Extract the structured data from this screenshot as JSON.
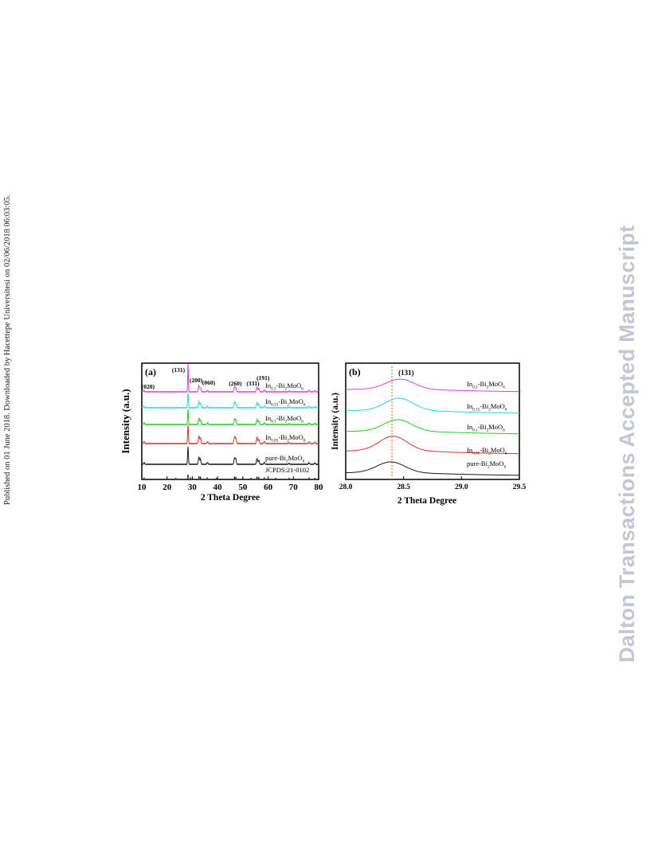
{
  "side_note": "Published on 01 June 2018. Downloaded by Hacettepe Universitesi on 02/06/2018 06:03:05.",
  "watermark": "Dalton Transactions Accepted Manuscript",
  "chart_data": [
    {
      "type": "line",
      "panel_label": "(a)",
      "xlabel": "2 Theta Degree",
      "ylabel": "Intensity (a.u.)",
      "xlim": [
        10,
        80
      ],
      "xticks": [
        "10",
        "20",
        "30",
        "40",
        "50",
        "60",
        "70",
        "80"
      ],
      "grid": false,
      "peak_labels": [
        {
          "text": "(020)",
          "x": 12.5
        },
        {
          "text": "(131)",
          "x": 24.5
        },
        {
          "text": "(200)",
          "x": 31.5
        },
        {
          "text": "(060)",
          "x": 36.5
        },
        {
          "text": "(260)",
          "x": 47.0
        },
        {
          "text": "(331)",
          "x": 54.0
        },
        {
          "text": "(191)",
          "x": 58.0
        }
      ],
      "peaks": [
        {
          "x": 10.9,
          "rel": 0.1
        },
        {
          "x": 28.3,
          "rel": 1.0
        },
        {
          "x": 32.6,
          "rel": 0.42
        },
        {
          "x": 33.2,
          "rel": 0.3
        },
        {
          "x": 36.0,
          "rel": 0.1
        },
        {
          "x": 46.7,
          "rel": 0.36
        },
        {
          "x": 47.2,
          "rel": 0.3
        },
        {
          "x": 55.6,
          "rel": 0.34
        },
        {
          "x": 56.3,
          "rel": 0.24
        },
        {
          "x": 58.5,
          "rel": 0.12
        },
        {
          "x": 68.3,
          "rel": 0.05
        },
        {
          "x": 76.2,
          "rel": 0.1
        },
        {
          "x": 78.5,
          "rel": 0.08
        }
      ],
      "series": [
        {
          "name": "pure-Bi",
          "sub1": "2",
          "mid": "MoO",
          "sub2": "6",
          "color": "#1a1a1a",
          "scale": 1.0
        },
        {
          "name": "In",
          "sub0": "0.05",
          "mid0": "-Bi",
          "sub1": "2",
          "mid": "MoO",
          "sub2": "6",
          "color": "#e8302a",
          "scale": 1.05
        },
        {
          "name": "In",
          "sub0": "0.1",
          "mid0": "-Bi",
          "sub1": "2",
          "mid": "MoO",
          "sub2": "6",
          "color": "#1ed11e",
          "scale": 0.85
        },
        {
          "name": "In",
          "sub0": "0.15",
          "mid0": "-Bi",
          "sub1": "2",
          "mid": "MoO",
          "sub2": "6",
          "color": "#22dddd",
          "scale": 0.85
        },
        {
          "name": "In",
          "sub0": "0.2",
          "mid0": "-Bi",
          "sub1": "2",
          "mid": "MoO",
          "sub2": "6",
          "color": "#e23ce2",
          "scale": 0.8
        }
      ],
      "reference": {
        "name": "JCPDS:21-0102",
        "lines": [
          {
            "x": 10.9,
            "h": 0.3
          },
          {
            "x": 23.5,
            "h": 0.2
          },
          {
            "x": 28.3,
            "h": 1.0
          },
          {
            "x": 29.3,
            "h": 0.3
          },
          {
            "x": 32.6,
            "h": 0.6
          },
          {
            "x": 33.2,
            "h": 0.5
          },
          {
            "x": 35.9,
            "h": 0.3
          },
          {
            "x": 39.5,
            "h": 0.2
          },
          {
            "x": 46.7,
            "h": 0.5
          },
          {
            "x": 47.2,
            "h": 0.4
          },
          {
            "x": 50.0,
            "h": 0.2
          },
          {
            "x": 53.2,
            "h": 0.2
          },
          {
            "x": 55.6,
            "h": 0.5
          },
          {
            "x": 56.3,
            "h": 0.4
          },
          {
            "x": 58.5,
            "h": 0.3
          },
          {
            "x": 63.0,
            "h": 0.2
          },
          {
            "x": 68.3,
            "h": 0.2
          },
          {
            "x": 76.2,
            "h": 0.3
          },
          {
            "x": 78.5,
            "h": 0.2
          }
        ]
      }
    },
    {
      "type": "line",
      "panel_label": "(b)",
      "xlabel": "2 Theta Degree",
      "ylabel": "Intensity (a.u.)",
      "xlim": [
        28.0,
        29.5
      ],
      "xticks": [
        "28.0",
        "28.5",
        "29.0",
        "29.5"
      ],
      "grid": false,
      "annotation": {
        "text": "(131)",
        "x": 28.4
      },
      "reference_line": {
        "x": 28.4,
        "style": "dotted",
        "color": "#d9823a"
      },
      "series": [
        {
          "name": "pure-Bi",
          "sub1": "2",
          "mid": "MoO",
          "sub2": "6",
          "color": "#1a1a1a",
          "peak_x": 28.39,
          "amp": 0.75
        },
        {
          "name": "In",
          "sub0": "0.05",
          "mid0": "-Bi",
          "sub1": "2",
          "mid": "MoO",
          "sub2": "6",
          "color": "#e8302a",
          "peak_x": 28.41,
          "amp": 1.0
        },
        {
          "name": "In",
          "sub0": "0.1",
          "mid0": "-Bi",
          "sub1": "2",
          "mid": "MoO",
          "sub2": "6",
          "color": "#1ed11e",
          "peak_x": 28.45,
          "amp": 0.8
        },
        {
          "name": "In",
          "sub0": "0.15",
          "mid0": "-Bi",
          "sub1": "2",
          "mid": "MoO",
          "sub2": "6",
          "color": "#22dddd",
          "peak_x": 28.46,
          "amp": 0.85
        },
        {
          "name": "In",
          "sub0": "0.2",
          "mid0": "-Bi",
          "sub1": "2",
          "mid": "MoO",
          "sub2": "6",
          "color": "#e23ce2",
          "peak_x": 28.47,
          "amp": 0.7
        }
      ]
    }
  ]
}
